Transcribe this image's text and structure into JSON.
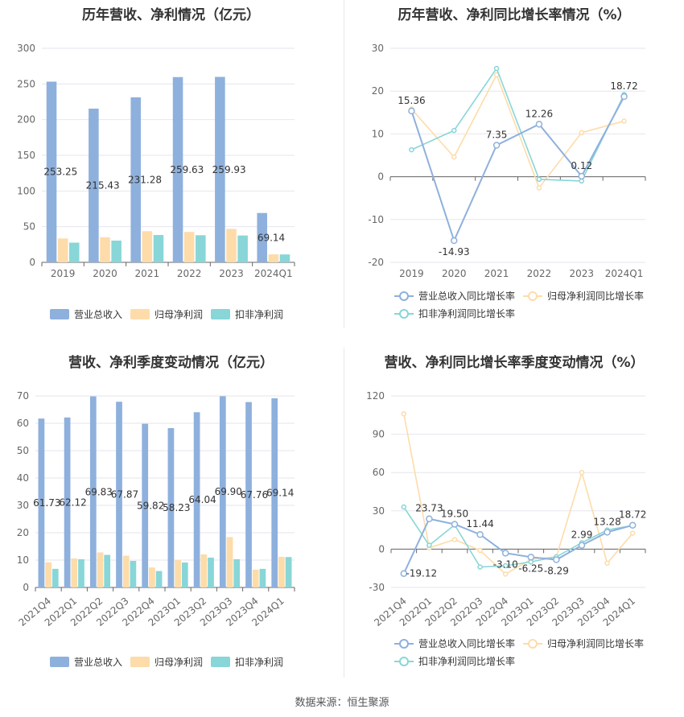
{
  "source_text": "数据来源：恒生聚源",
  "chart_data": [
    {
      "id": "annual_bar",
      "type": "bar",
      "title": "历年营收、净利情况（亿元）",
      "categories": [
        "2019",
        "2020",
        "2021",
        "2022",
        "2023",
        "2024Q1"
      ],
      "ylim": [
        0,
        300
      ],
      "yticks": [
        0,
        50,
        100,
        150,
        200,
        250,
        300
      ],
      "grid": true,
      "legend_position": "bottom",
      "series": [
        {
          "name": "营业总收入",
          "color": "#8eb0dd",
          "values": [
            253.25,
            215.43,
            231.28,
            259.63,
            259.93,
            69.14
          ],
          "labels": [
            "253.25",
            "215.43",
            "231.28",
            "259.63",
            "259.93",
            "69.14"
          ]
        },
        {
          "name": "归母净利润",
          "color": "#fddcaa",
          "values": [
            33.5,
            35.2,
            43.7,
            42.6,
            46.9,
            11.2
          ]
        },
        {
          "name": "扣非净利润",
          "color": "#88d6d8",
          "values": [
            27.6,
            30.5,
            38.3,
            38.0,
            37.6,
            11.1
          ]
        }
      ]
    },
    {
      "id": "annual_line",
      "type": "line",
      "title": "历年营收、净利同比增长率情况（%）",
      "categories": [
        "2019",
        "2020",
        "2021",
        "2022",
        "2023",
        "2024Q1"
      ],
      "ylim": [
        -20,
        30
      ],
      "yticks": [
        -20,
        -10,
        0,
        10,
        20,
        30
      ],
      "grid": true,
      "legend_position": "bottom",
      "series": [
        {
          "name": "营业总收入同比增长率",
          "color": "#8eb0dd",
          "values": [
            15.36,
            -14.93,
            7.35,
            12.26,
            0.12,
            18.72
          ],
          "labels": [
            "15.36",
            "-14.93",
            "7.35",
            "12.26",
            "0.12",
            "18.72"
          ]
        },
        {
          "name": "归母净利润同比增长率",
          "color": "#fddcaa",
          "values": [
            15.8,
            4.6,
            23.8,
            -2.6,
            10.3,
            13.0
          ]
        },
        {
          "name": "扣非净利润同比增长率",
          "color": "#88d6d8",
          "values": [
            6.3,
            10.8,
            25.3,
            -0.6,
            -1.0,
            19.2
          ]
        }
      ]
    },
    {
      "id": "quarter_bar",
      "type": "bar",
      "title": "营收、净利季度变动情况（亿元）",
      "categories": [
        "2021Q4",
        "2022Q1",
        "2022Q2",
        "2022Q3",
        "2022Q4",
        "2023Q1",
        "2023Q2",
        "2023Q3",
        "2023Q4",
        "2024Q1"
      ],
      "ylim": [
        0,
        70
      ],
      "yticks": [
        0,
        10,
        20,
        30,
        40,
        50,
        60,
        70
      ],
      "grid": true,
      "legend_position": "bottom",
      "series": [
        {
          "name": "营业总收入",
          "color": "#8eb0dd",
          "values": [
            61.73,
            62.12,
            69.83,
            67.87,
            59.82,
            58.23,
            64.04,
            69.9,
            67.76,
            69.14
          ],
          "labels": [
            "61.73",
            "62.12",
            "69.83",
            "67.87",
            "59.82",
            "58.23",
            "64.04",
            "69.90",
            "67.76",
            "69.14"
          ]
        },
        {
          "name": "归母净利润",
          "color": "#fddcaa",
          "values": [
            9.2,
            10.6,
            12.8,
            11.6,
            7.3,
            10.0,
            12.1,
            18.4,
            6.5,
            11.2
          ]
        },
        {
          "name": "扣非净利润",
          "color": "#88d6d8",
          "values": [
            6.8,
            10.3,
            11.9,
            9.7,
            6.0,
            9.1,
            10.9,
            10.3,
            6.8,
            11.1
          ]
        }
      ]
    },
    {
      "id": "quarter_line",
      "type": "line",
      "title": "营收、净利同比增长率季度变动情况（%）",
      "categories": [
        "2021Q4",
        "2022Q1",
        "2022Q2",
        "2022Q3",
        "2022Q4",
        "2023Q1",
        "2023Q2",
        "2023Q3",
        "2023Q4",
        "2024Q1"
      ],
      "ylim": [
        -30,
        120
      ],
      "yticks": [
        -30,
        0,
        30,
        60,
        90,
        120
      ],
      "grid": true,
      "legend_position": "bottom",
      "series": [
        {
          "name": "营业总收入同比增长率",
          "color": "#8eb0dd",
          "values": [
            -19.12,
            23.73,
            19.5,
            11.44,
            -3.1,
            -6.25,
            -8.29,
            2.99,
            13.28,
            18.72
          ],
          "labels": [
            "-19.12",
            "23.73",
            "19.50",
            "11.44",
            "-3.10",
            "-6.25",
            "-8.29",
            "2.99",
            "13.28",
            "18.72"
          ]
        },
        {
          "name": "归母净利润同比增长率",
          "color": "#fddcaa",
          "values": [
            106.0,
            1.0,
            7.5,
            -1.0,
            -19.5,
            -8.0,
            -6.0,
            60.0,
            -11.0,
            12.5
          ]
        },
        {
          "name": "扣非净利润同比增长率",
          "color": "#88d6d8",
          "values": [
            33.0,
            3.0,
            19.0,
            -14.0,
            -13.0,
            -10.0,
            -6.0,
            5.0,
            15.0,
            18.5
          ]
        }
      ]
    }
  ]
}
